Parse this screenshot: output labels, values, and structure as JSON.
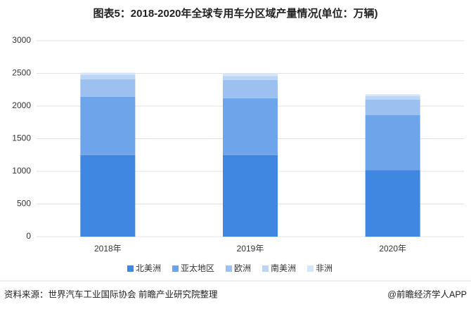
{
  "chart_data": {
    "type": "stacked_bar",
    "title": "图表5：2018-2020年全球专用车分区域产量情况(单位：万辆)",
    "categories": [
      "2018年",
      "2019年",
      "2020年"
    ],
    "series": [
      {
        "name": "北美洲",
        "color": "#3f87e0",
        "values": [
          1250,
          1250,
          1020
        ]
      },
      {
        "name": "亚太地区",
        "color": "#6ea4ea",
        "values": [
          890,
          870,
          840
        ]
      },
      {
        "name": "欧洲",
        "color": "#9cc0f0",
        "values": [
          270,
          280,
          240
        ]
      },
      {
        "name": "南美洲",
        "color": "#bcd5f5",
        "values": [
          70,
          60,
          50
        ]
      },
      {
        "name": "非洲",
        "color": "#d6e6fa",
        "values": [
          30,
          40,
          30
        ]
      }
    ],
    "ylim": [
      0,
      3000
    ],
    "yticks": [
      0,
      500,
      1000,
      1500,
      2000,
      2500,
      3000
    ],
    "grid": true,
    "legend": "bottom",
    "source": "资料来源：世界汽车工业国际协会 前瞻产业研究院整理",
    "credit": "@前瞻经济学人APP"
  }
}
